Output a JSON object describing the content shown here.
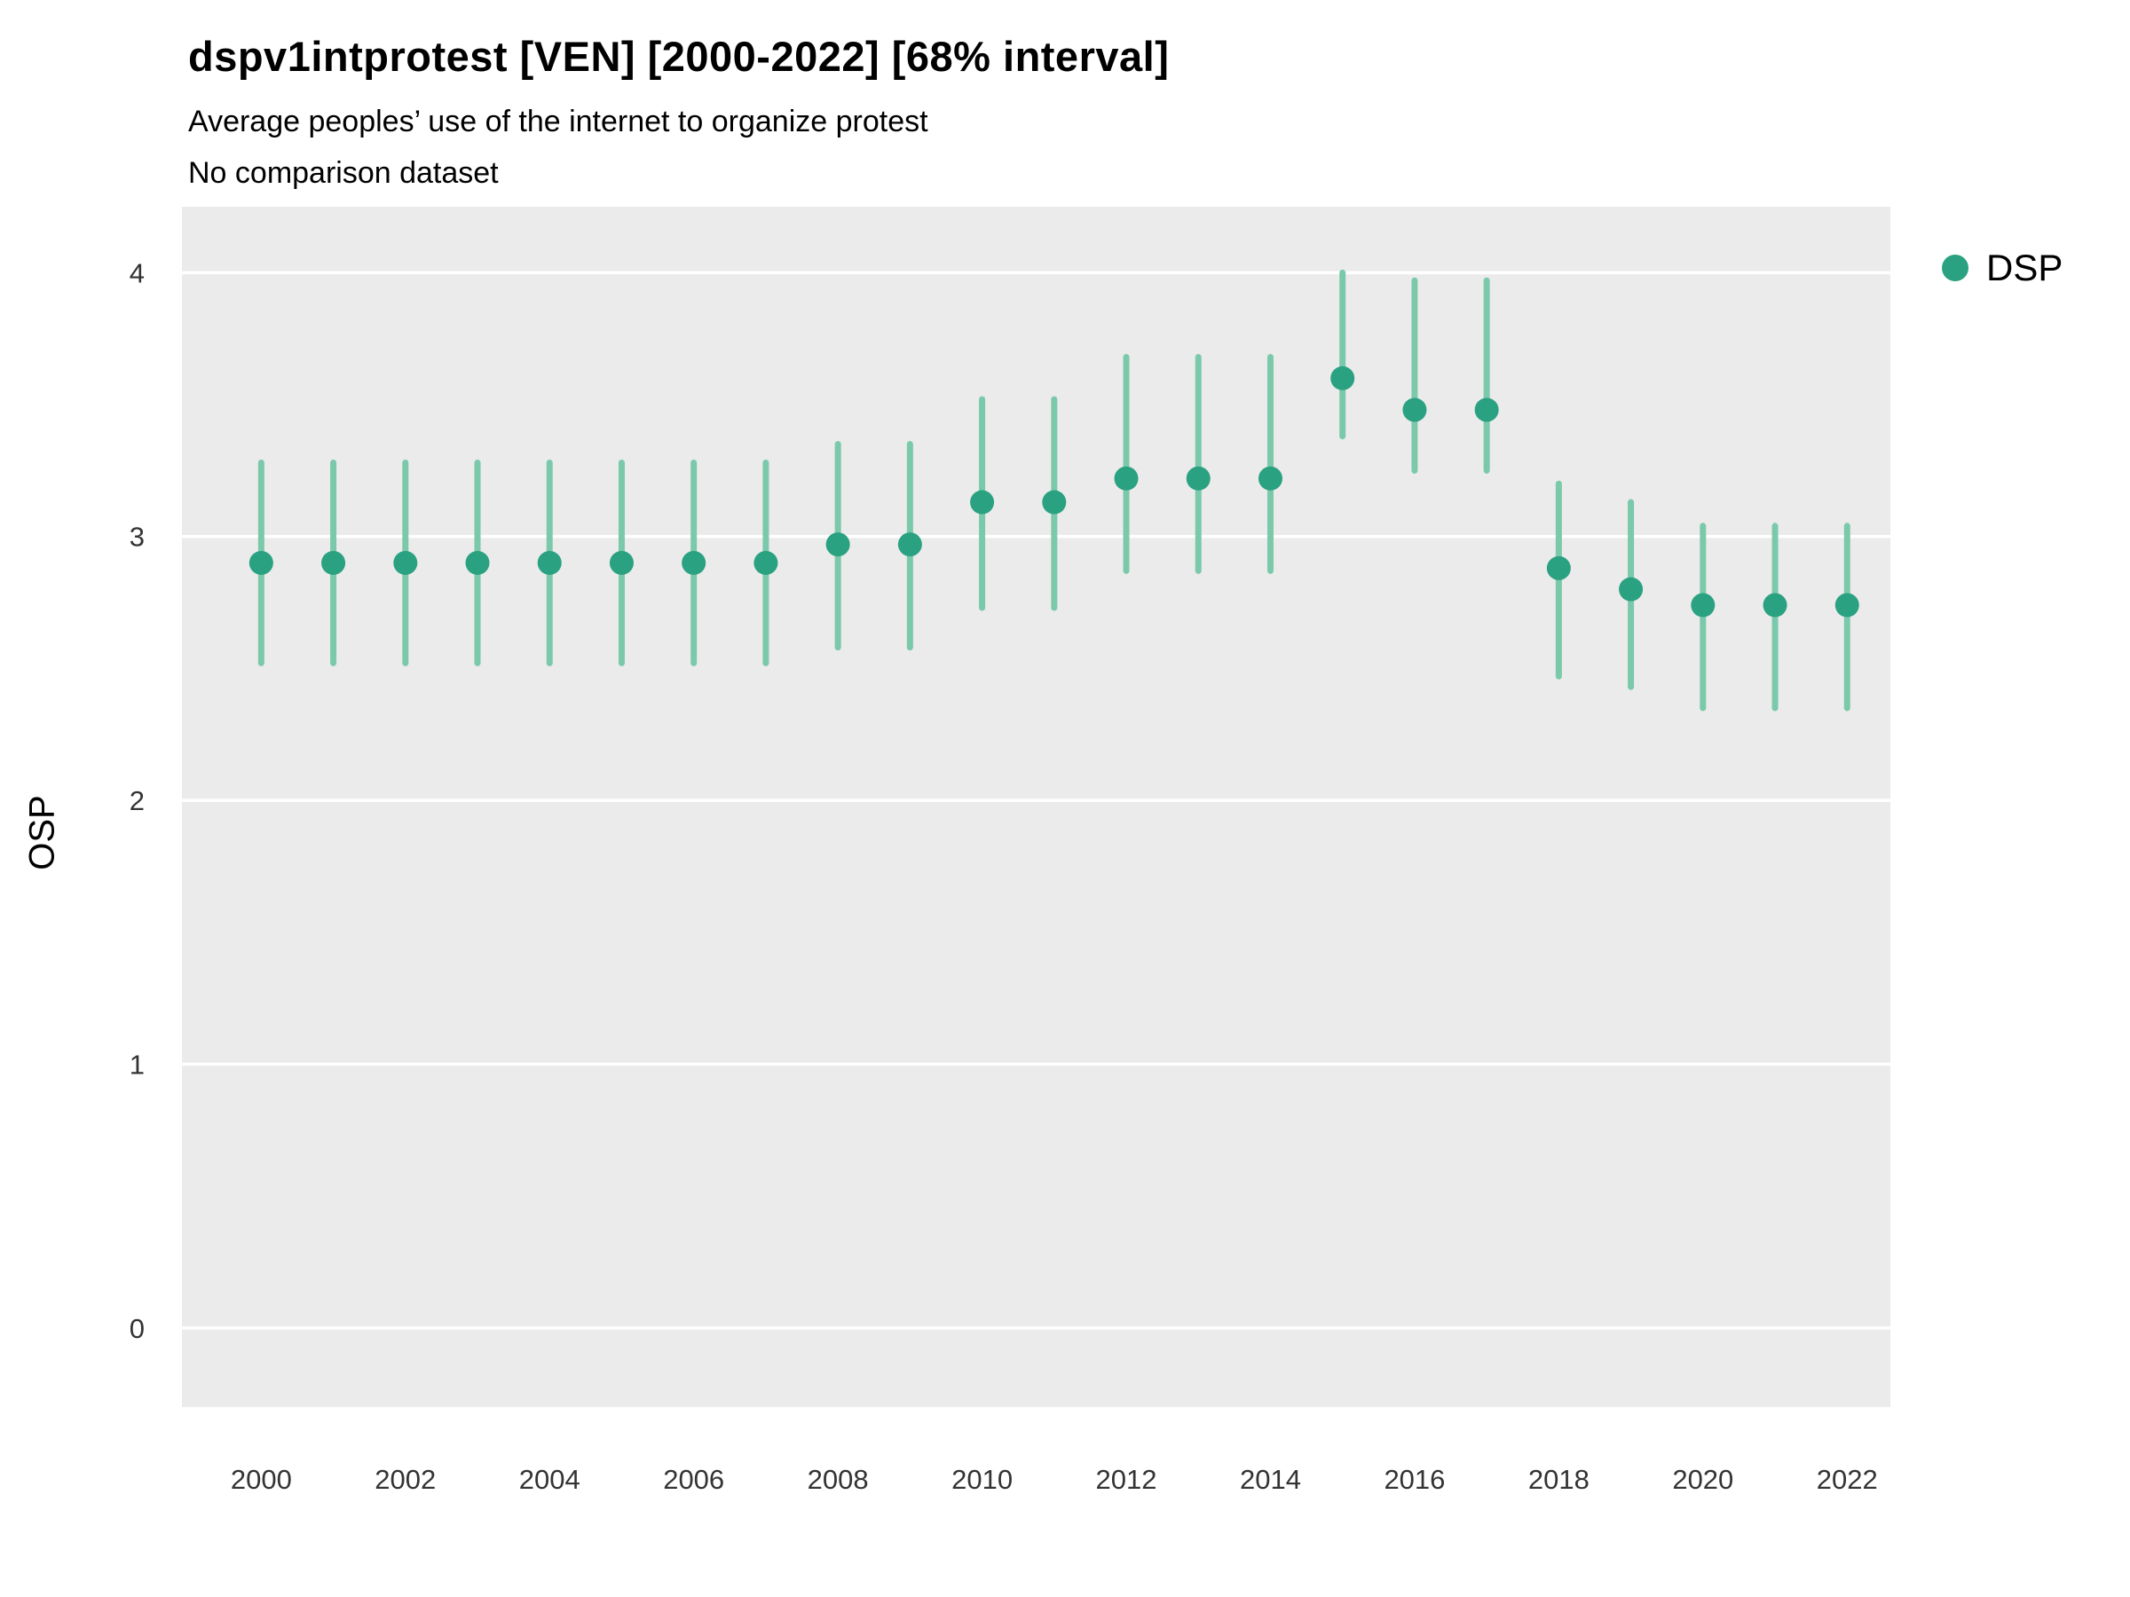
{
  "chart_data": {
    "type": "scatter",
    "title": "dspv1intprotest [VEN] [2000-2022] [68% interval]",
    "subtitle": "Average peoples’ use of the internet to organize protest",
    "note": "No comparison dataset",
    "xlabel": "",
    "ylabel": "OSP",
    "legend": [
      {
        "name": "DSP",
        "color": "#2aa181"
      }
    ],
    "legend_position": "right",
    "grid": true,
    "xlim": [
      1998.9,
      2022.6
    ],
    "ylim": [
      -0.3,
      4.25
    ],
    "yticks": [
      0,
      1,
      2,
      3,
      4
    ],
    "xticks": [
      2000,
      2002,
      2004,
      2006,
      2008,
      2010,
      2012,
      2014,
      2016,
      2018,
      2020,
      2022
    ],
    "x": [
      2000,
      2001,
      2002,
      2003,
      2004,
      2005,
      2006,
      2007,
      2008,
      2009,
      2010,
      2011,
      2012,
      2013,
      2014,
      2015,
      2016,
      2017,
      2018,
      2019,
      2020,
      2021,
      2022
    ],
    "series": [
      {
        "name": "DSP",
        "values": [
          2.9,
          2.9,
          2.9,
          2.9,
          2.9,
          2.9,
          2.9,
          2.9,
          2.97,
          2.97,
          3.13,
          3.13,
          3.22,
          3.22,
          3.22,
          3.6,
          3.48,
          3.48,
          2.88,
          2.8,
          2.74,
          2.74,
          2.74
        ],
        "low": [
          2.52,
          2.52,
          2.52,
          2.52,
          2.52,
          2.52,
          2.52,
          2.52,
          2.58,
          2.58,
          2.73,
          2.73,
          2.87,
          2.87,
          2.87,
          3.38,
          3.25,
          3.25,
          2.47,
          2.43,
          2.35,
          2.35,
          2.35
        ],
        "high": [
          3.28,
          3.28,
          3.28,
          3.28,
          3.28,
          3.28,
          3.28,
          3.28,
          3.35,
          3.35,
          3.52,
          3.52,
          3.68,
          3.68,
          3.68,
          4.0,
          3.97,
          3.97,
          3.2,
          3.13,
          3.04,
          3.04,
          3.04
        ]
      }
    ],
    "interval_label": "68% interval",
    "colors": {
      "point": "#2aa181",
      "interval": "#7bc9ab",
      "plot_bg": "#ebebeb",
      "grid": "#ffffff",
      "tick_text": "#333333"
    }
  }
}
